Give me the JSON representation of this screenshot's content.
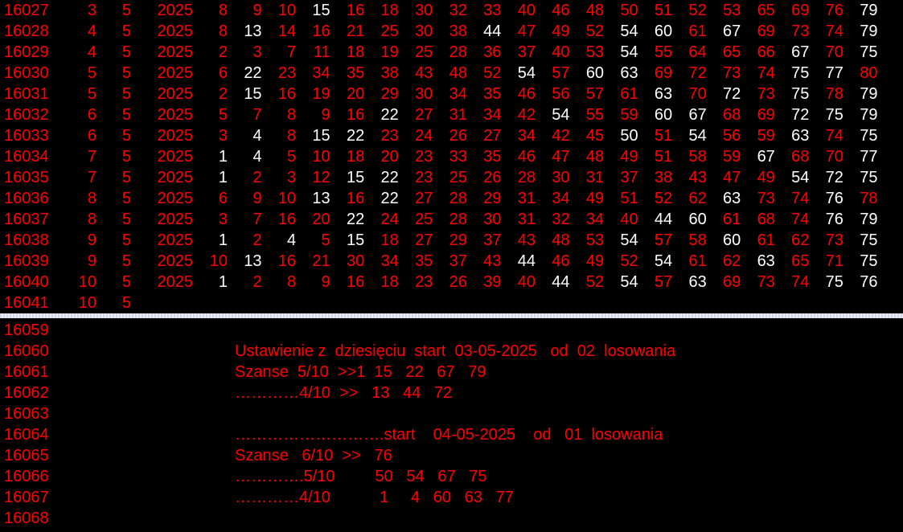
{
  "colors": {
    "background": "#000000",
    "default_text": "#ff0000",
    "highlight_text": "#ffffff"
  },
  "top_rows": [
    {
      "id": "16027",
      "day": "3",
      "month": "5",
      "year": "2025",
      "nums": [
        8,
        9,
        10,
        15,
        16,
        18,
        30,
        32,
        33,
        40,
        46,
        48,
        50,
        51,
        52,
        53,
        65,
        69,
        76,
        79
      ],
      "white": [
        15,
        79
      ]
    },
    {
      "id": "16028",
      "day": "4",
      "month": "5",
      "year": "2025",
      "nums": [
        8,
        13,
        14,
        16,
        21,
        25,
        30,
        38,
        44,
        47,
        49,
        52,
        54,
        60,
        61,
        67,
        69,
        73,
        74,
        79
      ],
      "white": [
        13,
        44,
        54,
        60,
        67,
        79
      ]
    },
    {
      "id": "16029",
      "day": "4",
      "month": "5",
      "year": "2025",
      "nums": [
        2,
        3,
        7,
        11,
        18,
        19,
        25,
        28,
        36,
        37,
        40,
        53,
        54,
        55,
        64,
        65,
        66,
        67,
        70,
        75
      ],
      "white": [
        54,
        67,
        75
      ]
    },
    {
      "id": "16030",
      "day": "5",
      "month": "5",
      "year": "2025",
      "nums": [
        6,
        22,
        23,
        34,
        35,
        38,
        43,
        48,
        52,
        54,
        57,
        60,
        63,
        69,
        72,
        73,
        74,
        75,
        77,
        80
      ],
      "white": [
        22,
        54,
        60,
        63,
        75,
        77
      ]
    },
    {
      "id": "16031",
      "day": "5",
      "month": "5",
      "year": "2025",
      "nums": [
        2,
        15,
        16,
        19,
        20,
        29,
        30,
        34,
        35,
        46,
        56,
        57,
        61,
        63,
        70,
        72,
        73,
        75,
        78,
        79
      ],
      "white": [
        15,
        63,
        72,
        75,
        79
      ]
    },
    {
      "id": "16032",
      "day": "6",
      "month": "5",
      "year": "2025",
      "nums": [
        5,
        7,
        8,
        9,
        16,
        22,
        27,
        31,
        34,
        42,
        54,
        55,
        59,
        60,
        67,
        68,
        69,
        72,
        75,
        79
      ],
      "white": [
        22,
        54,
        60,
        67,
        72,
        75,
        79
      ]
    },
    {
      "id": "16033",
      "day": "6",
      "month": "5",
      "year": "2025",
      "nums": [
        3,
        4,
        8,
        15,
        22,
        23,
        24,
        26,
        27,
        34,
        42,
        45,
        50,
        51,
        54,
        56,
        59,
        63,
        74,
        75
      ],
      "white": [
        4,
        15,
        22,
        50,
        54,
        63,
        75
      ]
    },
    {
      "id": "16034",
      "day": "7",
      "month": "5",
      "year": "2025",
      "nums": [
        1,
        4,
        5,
        10,
        18,
        20,
        23,
        33,
        35,
        46,
        47,
        48,
        49,
        51,
        58,
        59,
        67,
        68,
        70,
        77
      ],
      "white": [
        1,
        4,
        67,
        77
      ]
    },
    {
      "id": "16035",
      "day": "7",
      "month": "5",
      "year": "2025",
      "nums": [
        1,
        2,
        3,
        12,
        15,
        22,
        23,
        25,
        26,
        28,
        30,
        31,
        37,
        38,
        43,
        47,
        49,
        54,
        72,
        75
      ],
      "white": [
        1,
        15,
        22,
        54,
        72,
        75
      ]
    },
    {
      "id": "16036",
      "day": "8",
      "month": "5",
      "year": "2025",
      "nums": [
        6,
        9,
        10,
        13,
        16,
        22,
        27,
        28,
        29,
        31,
        34,
        49,
        51,
        52,
        62,
        63,
        73,
        74,
        76,
        78
      ],
      "white": [
        13,
        22,
        63,
        76
      ]
    },
    {
      "id": "16037",
      "day": "8",
      "month": "5",
      "year": "2025",
      "nums": [
        3,
        7,
        16,
        20,
        22,
        24,
        25,
        28,
        30,
        31,
        32,
        34,
        40,
        44,
        60,
        61,
        68,
        74,
        76,
        79
      ],
      "white": [
        22,
        44,
        60,
        76,
        79
      ]
    },
    {
      "id": "16038",
      "day": "9",
      "month": "5",
      "year": "2025",
      "nums": [
        1,
        2,
        4,
        5,
        15,
        18,
        27,
        29,
        37,
        43,
        48,
        53,
        54,
        57,
        58,
        60,
        61,
        62,
        73,
        75
      ],
      "white": [
        1,
        4,
        15,
        54,
        60,
        75
      ]
    },
    {
      "id": "16039",
      "day": "9",
      "month": "5",
      "year": "2025",
      "nums": [
        10,
        13,
        16,
        21,
        30,
        34,
        35,
        37,
        43,
        44,
        46,
        49,
        52,
        54,
        61,
        62,
        63,
        65,
        71,
        75
      ],
      "white": [
        13,
        44,
        54,
        63,
        75
      ]
    },
    {
      "id": "16040",
      "day": "10",
      "month": "5",
      "year": "2025",
      "nums": [
        1,
        2,
        8,
        9,
        16,
        18,
        23,
        26,
        39,
        40,
        44,
        52,
        54,
        57,
        63,
        69,
        73,
        74,
        75,
        76
      ],
      "white": [
        1,
        44,
        54,
        63,
        75,
        76
      ]
    },
    {
      "id": "16041",
      "day": "10",
      "month": "5",
      "year": "",
      "nums": [],
      "white": []
    }
  ],
  "bottom_rows": [
    {
      "id": "16059",
      "text": ""
    },
    {
      "id": "16060",
      "text": "Ustawienie z  dziesięciu  start  03-05-2025   od  02  losowania"
    },
    {
      "id": "16061",
      "text": "Szanse  5/10  >>1  15   22   67   79"
    },
    {
      "id": "16062",
      "text": "…………4/10  >>   13   44   72"
    },
    {
      "id": "16063",
      "text": ""
    },
    {
      "id": "16064",
      "text": "……………………….start    04-05-2025    od   01  losowania"
    },
    {
      "id": "16065",
      "text": "Szanse   6/10  >>   76"
    },
    {
      "id": "16066",
      "text": "………….5/10         50   54   67   75"
    },
    {
      "id": "16067",
      "text": "…………4/10           1     4   60   63   77"
    },
    {
      "id": "16068",
      "text": ""
    }
  ]
}
